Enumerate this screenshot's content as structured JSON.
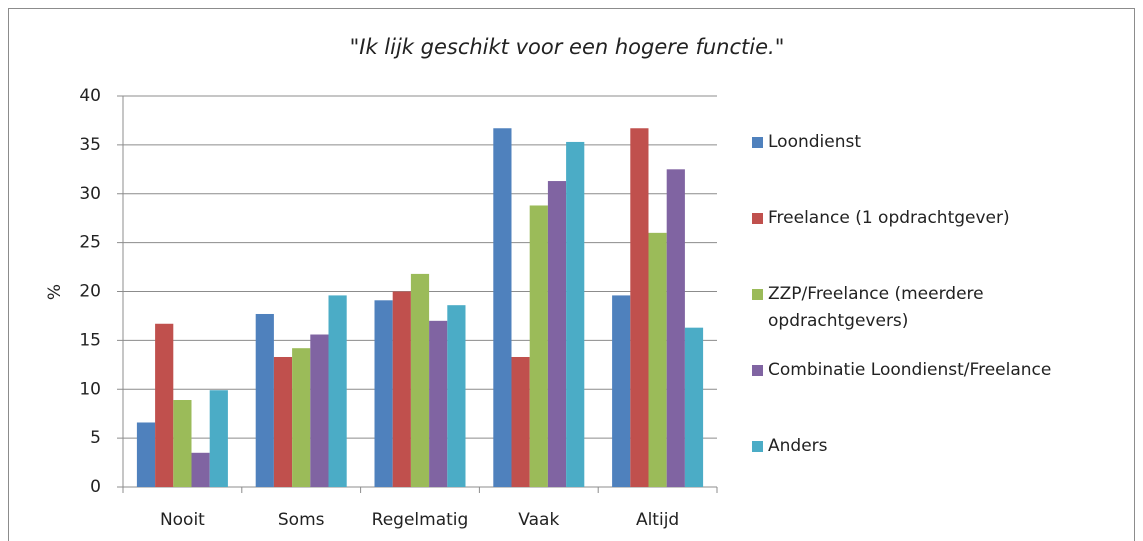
{
  "chart_data": {
    "type": "bar",
    "title": "\"Ik lijk geschikt voor een hogere functie.\"",
    "y_label": "%",
    "categories": [
      "Nooit",
      "Soms",
      "Regelmatig",
      "Vaak",
      "Altijd"
    ],
    "series": [
      {
        "name": "Loondienst",
        "color": "#4f81bd",
        "values": [
          6.6,
          17.7,
          19.1,
          36.7,
          19.6
        ]
      },
      {
        "name": "Freelance (1 opdrachtgever)",
        "color": "#c0504d",
        "values": [
          16.7,
          13.3,
          20.0,
          13.3,
          36.7
        ]
      },
      {
        "name": "ZZP/Freelance (meerdere opdrachtgevers)",
        "color": "#9bbb59",
        "values": [
          8.9,
          14.2,
          21.8,
          28.8,
          26.0
        ]
      },
      {
        "name": "Combinatie Loondienst/Freelance",
        "color": "#8064a2",
        "values": [
          3.5,
          15.6,
          17.0,
          31.3,
          32.5
        ]
      },
      {
        "name": "Anders",
        "color": "#4bacc6",
        "values": [
          9.9,
          19.6,
          18.6,
          35.3,
          16.3
        ]
      }
    ],
    "ylim": [
      0,
      40
    ],
    "yticks": [
      0,
      5,
      10,
      15,
      20,
      25,
      30,
      35,
      40
    ],
    "grid": true,
    "legend": "right"
  }
}
